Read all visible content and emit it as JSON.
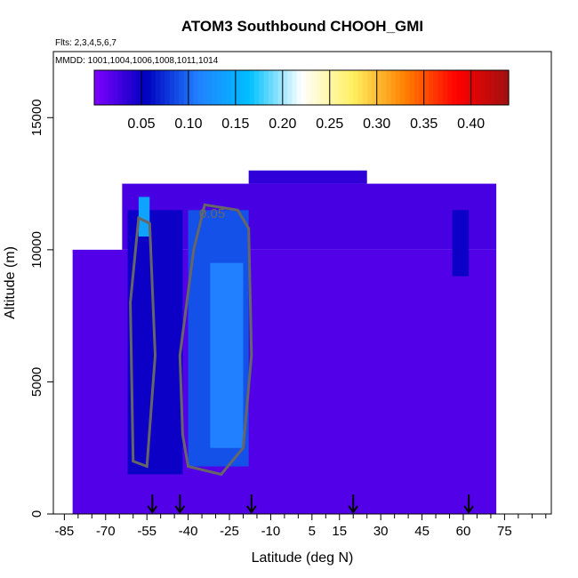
{
  "chart_data": {
    "type": "heatmap",
    "title": "ATOM3 Southbound CHOOH_GMI",
    "annotations": [
      "Flts: 2,3,4,5,6,7",
      "MMDD: 1001,1004,1006,1008,1011,1014"
    ],
    "xlabel": "Latitude (deg N)",
    "ylabel": "Altitude (m)",
    "xlim": [
      -89,
      92
    ],
    "ylim": [
      0,
      17500
    ],
    "x_ticks": [
      -85,
      -70,
      -55,
      -40,
      -25,
      -10,
      5,
      15,
      30,
      45,
      60,
      75
    ],
    "y_ticks": [
      0,
      5000,
      10000,
      15000
    ],
    "colorbar": {
      "range": [
        0,
        0.44
      ],
      "ticks": [
        0.05,
        0.1,
        0.15,
        0.2,
        0.25,
        0.3,
        0.35,
        0.4
      ],
      "tick_labels": [
        "0.05",
        "0.10",
        "0.15",
        "0.20",
        "0.25",
        "0.30",
        "0.35",
        "0.40"
      ],
      "colors": [
        "#8000ff",
        "#0000c0",
        "#2080ff",
        "#00c0ff",
        "#ffffff",
        "#fff060",
        "#ff8000",
        "#ff0000",
        "#a01010"
      ]
    },
    "contour_label": "0.05",
    "contour_color": "#666666",
    "flight_markers_lat": [
      -53,
      -43,
      -17,
      20,
      62
    ],
    "grid": false,
    "regions": [
      {
        "lat": [
          -82,
          72
        ],
        "alt": [
          0,
          10000
        ],
        "value": 0.02
      },
      {
        "lat": [
          -64,
          72
        ],
        "alt": [
          10000,
          12500
        ],
        "value": 0.025
      },
      {
        "lat": [
          -18,
          25
        ],
        "alt": [
          12500,
          13000
        ],
        "value": 0.035
      },
      {
        "lat": [
          -40,
          -18
        ],
        "alt": [
          1800,
          11500
        ],
        "value": 0.09
      },
      {
        "lat": [
          -32,
          -20
        ],
        "alt": [
          2500,
          9500
        ],
        "value": 0.11
      },
      {
        "lat": [
          -62,
          -42
        ],
        "alt": [
          1500,
          11500
        ],
        "value": 0.05
      },
      {
        "lat": [
          -58,
          -54
        ],
        "alt": [
          10500,
          12000
        ],
        "value": 0.14
      },
      {
        "lat": [
          56,
          62
        ],
        "alt": [
          9000,
          11500
        ],
        "value": 0.05
      }
    ]
  }
}
